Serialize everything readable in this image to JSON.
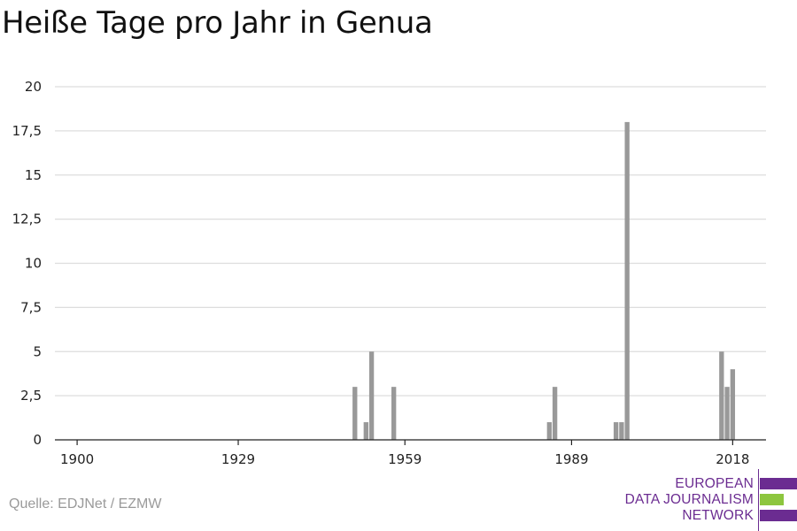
{
  "title": "Heiße Tage pro Jahr in Genua",
  "source": "Quelle: EDJNet / EZMW",
  "logo": {
    "lines": [
      "EUROPEAN",
      "DATA JOURNALISM",
      "NETWORK"
    ],
    "colors": {
      "text": "#6b2c91",
      "bar_purple": "#6b2c91",
      "bar_green": "#8dc63f"
    }
  },
  "chart_data": {
    "type": "bar",
    "title": "Heiße Tage pro Jahr in Genua",
    "xlabel": "",
    "ylabel": "",
    "xlim": [
      1896,
      2024
    ],
    "ylim": [
      0,
      20
    ],
    "x_ticks": [
      1900,
      1929,
      1959,
      1989,
      2018
    ],
    "y_ticks": [
      {
        "value": 0,
        "label": "0"
      },
      {
        "value": 2.5,
        "label": "2,5"
      },
      {
        "value": 5,
        "label": "5"
      },
      {
        "value": 7.5,
        "label": "7,5"
      },
      {
        "value": 10,
        "label": "10"
      },
      {
        "value": 12.5,
        "label": "12,5"
      },
      {
        "value": 15,
        "label": "15"
      },
      {
        "value": 17.5,
        "label": "17,5"
      },
      {
        "value": 20,
        "label": "20"
      }
    ],
    "grid": true,
    "bar_color": "#999999",
    "x": [
      1950,
      1952,
      1953,
      1957,
      1985,
      1986,
      1997,
      1998,
      1999,
      2016,
      2017,
      2018
    ],
    "values": [
      3,
      1,
      5,
      3,
      1,
      3,
      1,
      1,
      18,
      5,
      3,
      4
    ]
  }
}
